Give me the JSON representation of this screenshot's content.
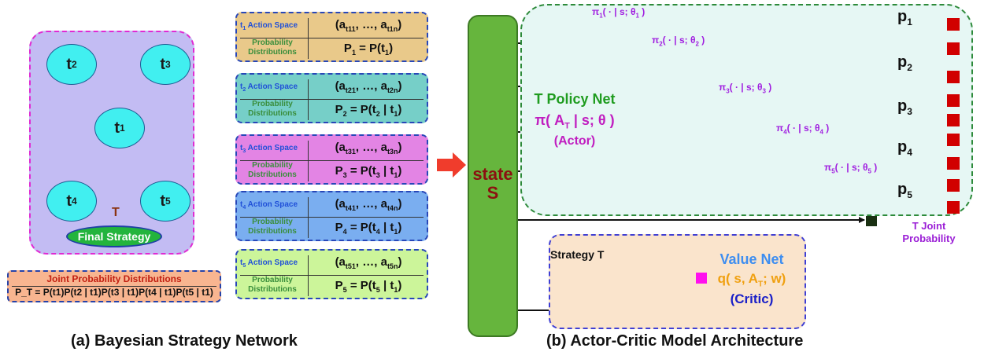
{
  "bayes": {
    "nodes": {
      "t1": "t",
      "t1_sub": "1",
      "t2": "t",
      "t2_sub": "2",
      "t3": "t",
      "t3_sub": "3",
      "t4": "t",
      "t4_sub": "4",
      "t5": "t",
      "t5_sub": "5"
    },
    "t_label": "T",
    "final_strategy": "Final Strategy",
    "joint_title": "Joint Probability Distributions",
    "joint_eq": "P_T = P(t1)P(t2 | t1)P(t3 | t1)P(t4 | t1)P(t5 | t1)"
  },
  "action_boxes": [
    {
      "t": "t",
      "sub": "1",
      "space": "Action Space",
      "pd": "Probability Distributions",
      "tuple_a": "(a",
      "tuple_s1": "t11",
      "tuple_mid": ", …, a",
      "tuple_s2": "t1n",
      "tuple_end": ")",
      "prob": "P",
      "prob_sub": "1",
      "prob_rest": " = P(t",
      "prob_t": "1",
      "prob_end": ")",
      "color": "#e9c98a"
    },
    {
      "t": "t",
      "sub": "2",
      "space": "Action Space",
      "pd": "Probability Distributions",
      "tuple_a": "(a",
      "tuple_s1": "t21",
      "tuple_mid": ", …, a",
      "tuple_s2": "t2n",
      "tuple_end": ")",
      "prob": "P",
      "prob_sub": "2",
      "prob_rest": " = P(t",
      "prob_t": "2",
      "prob_end": " | t",
      "prob_g": "1",
      "prob_close": ")",
      "color": "#76cfc8"
    },
    {
      "t": "t",
      "sub": "3",
      "space": "Action Space",
      "pd": "Probability Distributions",
      "tuple_a": "(a",
      "tuple_s1": "t31",
      "tuple_mid": ", …, a",
      "tuple_s2": "t3n",
      "tuple_end": ")",
      "prob": "P",
      "prob_sub": "3",
      "prob_rest": " = P(t",
      "prob_t": "3",
      "prob_end": " | t",
      "prob_g": "1",
      "prob_close": ")",
      "color": "#e384e4"
    },
    {
      "t": "t",
      "sub": "4",
      "space": "Action Space",
      "pd": "Probability Distributions",
      "tuple_a": "(a",
      "tuple_s1": "t41",
      "tuple_mid": ", …, a",
      "tuple_s2": "t4n",
      "tuple_end": ")",
      "prob": "P",
      "prob_sub": "4",
      "prob_rest": " = P(t",
      "prob_t": "4",
      "prob_end": " | t",
      "prob_g": "1",
      "prob_close": ")",
      "color": "#7aaef0"
    },
    {
      "t": "t",
      "sub": "5",
      "space": "Action Space",
      "pd": "Probability Distributions",
      "tuple_a": "(a",
      "tuple_s1": "t51",
      "tuple_mid": ", …, a",
      "tuple_s2": "t5n",
      "tuple_end": ")",
      "prob": "P",
      "prob_sub": "5",
      "prob_rest": " = P(t",
      "prob_t": "5",
      "prob_end": " | t",
      "prob_g": "1",
      "prob_close": ")",
      "color": "#ccf59a"
    }
  ],
  "actor_critic": {
    "state": "state",
    "state_s": "S",
    "policy_title": "T Policy Net",
    "policy_formula_a": "π( A",
    "policy_formula_sub": "T",
    "policy_formula_b": " | s; θ )",
    "actor": "(Actor)",
    "pi_labels": [
      {
        "a": "π",
        "s1": "1",
        "b": "( · | s; θ",
        "s2": "1",
        "c": " )"
      },
      {
        "a": "π",
        "s1": "2",
        "b": "( · | s; θ",
        "s2": "2",
        "c": " )"
      },
      {
        "a": "π",
        "s1": "3",
        "b": "( · | s; θ",
        "s2": "3",
        "c": " )"
      },
      {
        "a": "π",
        "s1": "4",
        "b": "( · | s; θ",
        "s2": "4",
        "c": " )"
      },
      {
        "a": "π",
        "s1": "5",
        "b": "( · | s; θ",
        "s2": "5",
        "c": " )"
      }
    ],
    "p_labels": [
      {
        "p": "p",
        "s": "1"
      },
      {
        "p": "p",
        "s": "2"
      },
      {
        "p": "p",
        "s": "3"
      },
      {
        "p": "p",
        "s": "4"
      },
      {
        "p": "p",
        "s": "5"
      }
    ],
    "joint_output_line1": "T Joint",
    "joint_output_line2": "Probability",
    "strategy_t": "Strategy T",
    "value_net": "Value Net",
    "value_formula_a": "q( s, A",
    "value_formula_sub": "T",
    "value_formula_b": "; w)",
    "critic": "(Critic)"
  },
  "captions": {
    "a": "(a) Bayesian Strategy Network",
    "b": "(b) Actor-Critic Model Architecture"
  },
  "colors": {
    "node": "#41eff0",
    "panel": "#c3bcf3",
    "state": "#66b53d",
    "policy_bar": "#1a3012",
    "critic_bar": "#1010e8",
    "output": "#d10000",
    "arrow_red": "#f03c2c"
  }
}
